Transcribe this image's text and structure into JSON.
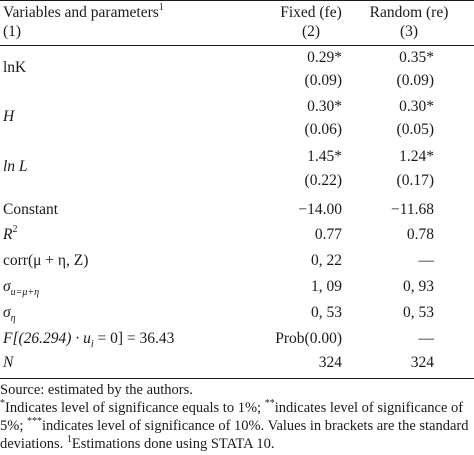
{
  "header": {
    "variables_label": "Variables and parameters",
    "variables_sup": "1",
    "col1": "(1)",
    "fixed_label": "Fixed (fe)",
    "fixed_num": "(2)",
    "random_label": "Random (re)",
    "random_num": "(3)"
  },
  "rows": [
    {
      "var": "lnK",
      "fixed": "0.29*",
      "random": "0.35*"
    },
    {
      "var": "",
      "fixed": "(0.09)",
      "random": "(0.09)"
    },
    {
      "var": "H",
      "fixed": "0.30*",
      "random": "0.30*"
    },
    {
      "var": "",
      "fixed": "(0.06)",
      "random": "(0.05)"
    },
    {
      "var": "ln L",
      "fixed": "1.45*",
      "random": "1.24*"
    },
    {
      "var": "",
      "fixed": "(0.22)",
      "random": "(0.17)"
    },
    {
      "var": "Constant",
      "fixed": "−14.00",
      "random": "−11.68"
    },
    {
      "var": "R",
      "var_sup": "2",
      "fixed": "0.77",
      "random": "0.78"
    },
    {
      "var": "corr(μ + η, Z)",
      "fixed": "0, 22",
      "random": "—"
    },
    {
      "var": "σ",
      "var_sub": "u=μ+η",
      "fixed": "1, 09",
      "random": "0, 93"
    },
    {
      "var": "σ",
      "var_sub": "η",
      "fixed": "0, 53",
      "random": "0, 53"
    },
    {
      "var": "F[(26.294) · u",
      "var_sub": "i",
      "var_tail": " = 0] = 36.43",
      "fixed": "Prob(0.00)",
      "random": "—"
    },
    {
      "var": "N",
      "fixed": "324",
      "random": "324"
    }
  ],
  "notes": {
    "source": "Source: estimated by the authors.",
    "sig_star1": "*",
    "sig_text1": "Indicates level of significance equals to 1%; ",
    "sig_star2": "**",
    "sig_text2": "indicates level of significance of 5%; ",
    "sig_star3": "***",
    "sig_text3": "indicates level of significance of 10%. Values in brackets are the standard deviations. ",
    "est_sup": "1",
    "est_text": "Estimations done using STATA 10."
  }
}
